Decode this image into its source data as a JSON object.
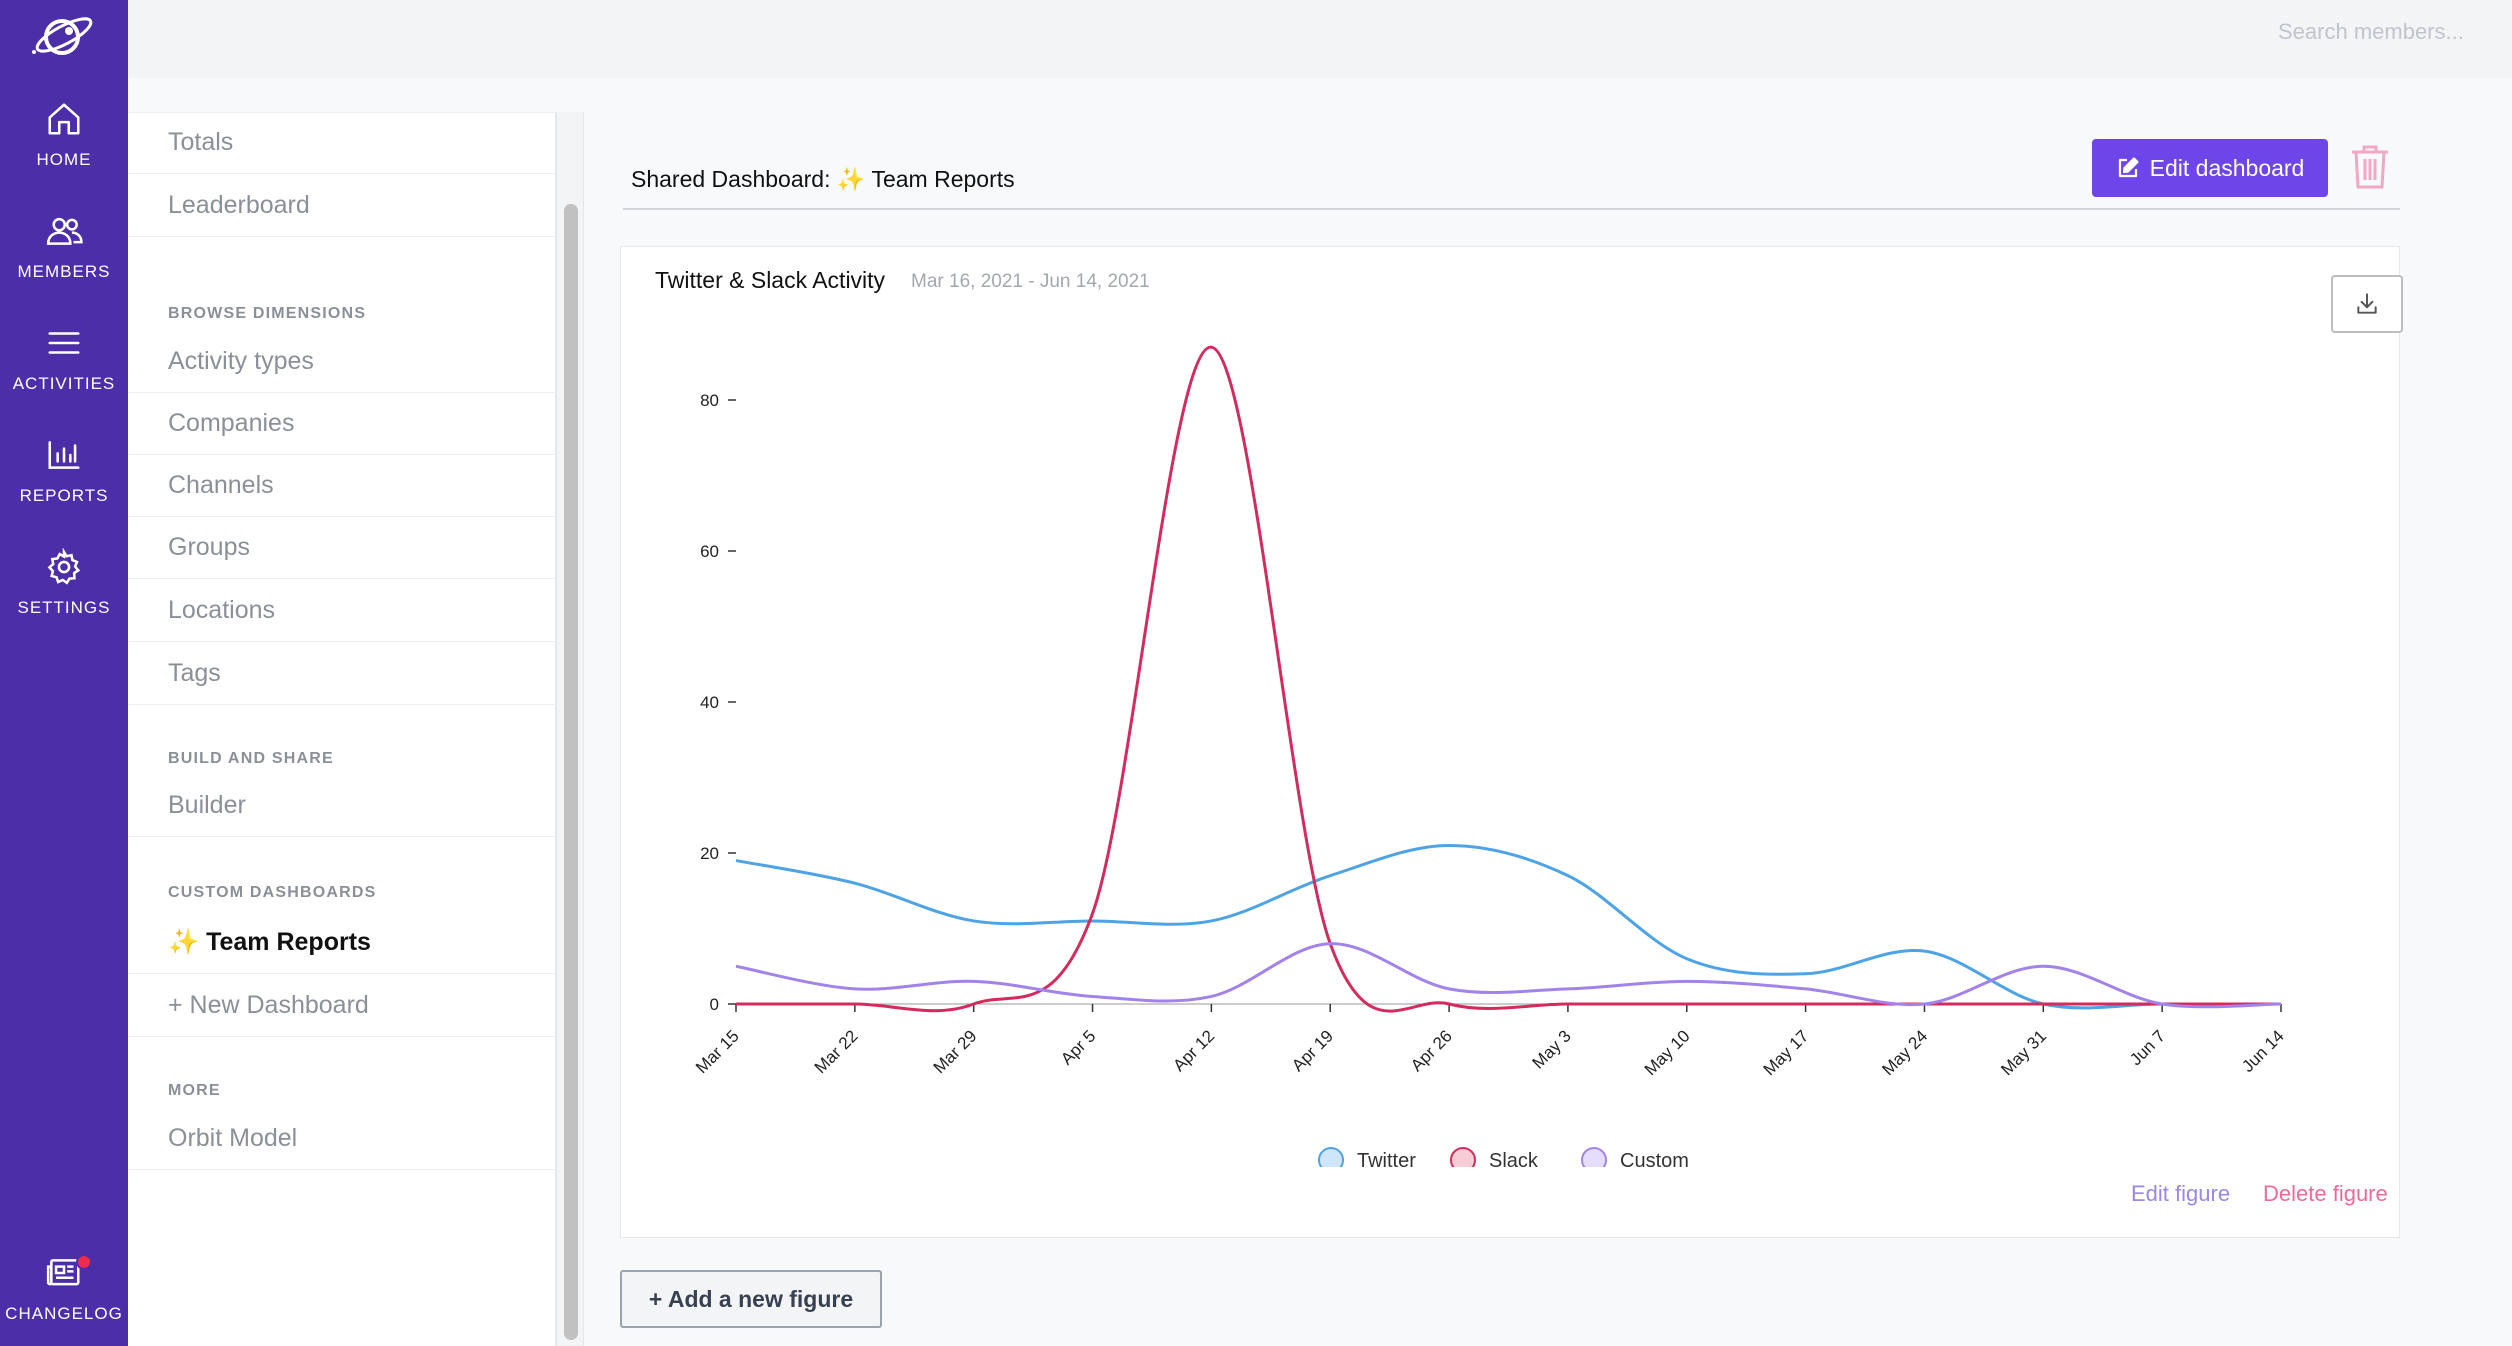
{
  "nav": {
    "items": [
      {
        "label": "HOME",
        "icon": "home-icon"
      },
      {
        "label": "MEMBERS",
        "icon": "members-icon"
      },
      {
        "label": "ACTIVITIES",
        "icon": "activities-icon"
      },
      {
        "label": "REPORTS",
        "icon": "reports-icon"
      },
      {
        "label": "SETTINGS",
        "icon": "gear-icon"
      }
    ],
    "changelog": "CHANGELOG",
    "brand_color": "#4c2ea8"
  },
  "search": {
    "placeholder": "Search members...",
    "shortcut": "/"
  },
  "sidebar": {
    "top_items": [
      "Totals",
      "Leaderboard"
    ],
    "browse_heading": "BROWSE DIMENSIONS",
    "browse_items": [
      "Activity types",
      "Companies",
      "Channels",
      "Groups",
      "Locations",
      "Tags"
    ],
    "build_heading": "BUILD AND SHARE",
    "build_items": [
      "Builder"
    ],
    "custom_heading": "CUSTOM DASHBOARDS",
    "custom_active": "✨ Team Reports",
    "custom_new": "+ New Dashboard",
    "more_heading": "MORE",
    "more_items": [
      "Orbit Model"
    ]
  },
  "dashboard": {
    "title": "Shared Dashboard: ✨ Team Reports",
    "edit_label": "Edit dashboard",
    "add_figure_label": "+ Add a new figure"
  },
  "figure": {
    "title": "Twitter & Slack Activity",
    "date_range": "Mar 16, 2021 - Jun 14, 2021",
    "edit_label": "Edit figure",
    "delete_label": "Delete figure"
  },
  "chart_data": {
    "type": "line",
    "x": [
      "Mar 15",
      "Mar 22",
      "Mar 29",
      "Apr 5",
      "Apr 12",
      "Apr 19",
      "Apr 26",
      "May 3",
      "May 10",
      "May 17",
      "May 24",
      "May 31",
      "Jun 7",
      "Jun 14"
    ],
    "series": [
      {
        "name": "Twitter",
        "color": "#4ea3e6",
        "values": [
          19,
          16,
          11,
          11,
          11,
          17,
          21,
          17,
          6,
          4,
          7,
          0,
          0,
          0
        ]
      },
      {
        "name": "Slack",
        "color": "#d42b5c",
        "values": [
          0,
          0,
          0,
          12,
          87,
          8,
          0,
          0,
          0,
          0,
          0,
          0,
          0,
          0
        ]
      },
      {
        "name": "Custom",
        "color": "#a283ea",
        "values": [
          5,
          2,
          3,
          1,
          1,
          8,
          2,
          2,
          3,
          2,
          0,
          5,
          0,
          0
        ]
      }
    ],
    "yticks": [
      0,
      20,
      40,
      60,
      80
    ],
    "ylim": [
      0,
      90
    ],
    "legend": "bottom-center",
    "grid": false
  }
}
